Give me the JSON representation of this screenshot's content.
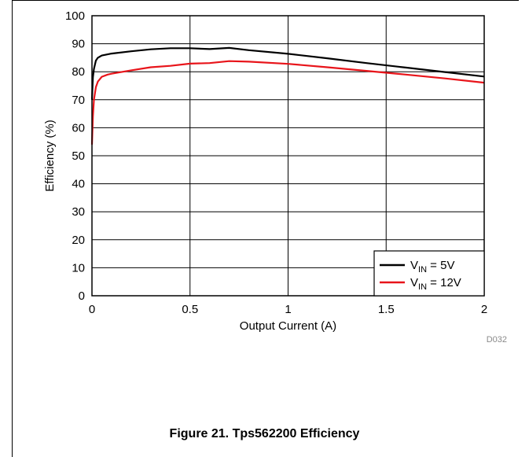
{
  "chart_data": {
    "type": "line",
    "xlabel": "Output Current (A)",
    "ylabel": "Efficiency (%)",
    "xlim": [
      0,
      2
    ],
    "ylim": [
      0,
      100
    ],
    "xticks": [
      "0",
      "0.5",
      "1",
      "1.5",
      "2"
    ],
    "yticks": [
      "0",
      "10",
      "20",
      "30",
      "40",
      "50",
      "60",
      "70",
      "80",
      "90",
      "100"
    ],
    "grid": true,
    "legend_position": "bottom-right",
    "series": [
      {
        "name_main": "V",
        "name_sub": "IN",
        "name_rest": " = 5V",
        "color": "#000000",
        "x": [
          0.0,
          0.005,
          0.01,
          0.02,
          0.03,
          0.05,
          0.08,
          0.1,
          0.2,
          0.3,
          0.4,
          0.5,
          0.6,
          0.7,
          0.8,
          1.0,
          1.2,
          1.4,
          1.6,
          1.8,
          2.0
        ],
        "y": [
          70,
          78,
          81,
          84,
          85,
          85.8,
          86.2,
          86.5,
          87.3,
          88,
          88.4,
          88.4,
          88.1,
          88.5,
          87.7,
          86.4,
          84.8,
          83.1,
          81.5,
          79.9,
          78.3
        ]
      },
      {
        "name_main": "V",
        "name_sub": "IN",
        "name_rest": " = 12V",
        "color": "#e8141a",
        "x": [
          0.0,
          0.005,
          0.01,
          0.02,
          0.03,
          0.05,
          0.08,
          0.1,
          0.2,
          0.3,
          0.4,
          0.5,
          0.6,
          0.7,
          0.8,
          1.0,
          1.2,
          1.4,
          1.6,
          1.8,
          2.0
        ],
        "y": [
          54,
          64,
          70,
          74.5,
          76.5,
          78.2,
          79,
          79.3,
          80.5,
          81.6,
          82.1,
          82.9,
          83.1,
          83.8,
          83.6,
          82.8,
          81.6,
          80.3,
          79,
          77.6,
          76.1
        ]
      }
    ],
    "code": "D032"
  },
  "caption": "Figure 21. Tps562200 Efficiency"
}
